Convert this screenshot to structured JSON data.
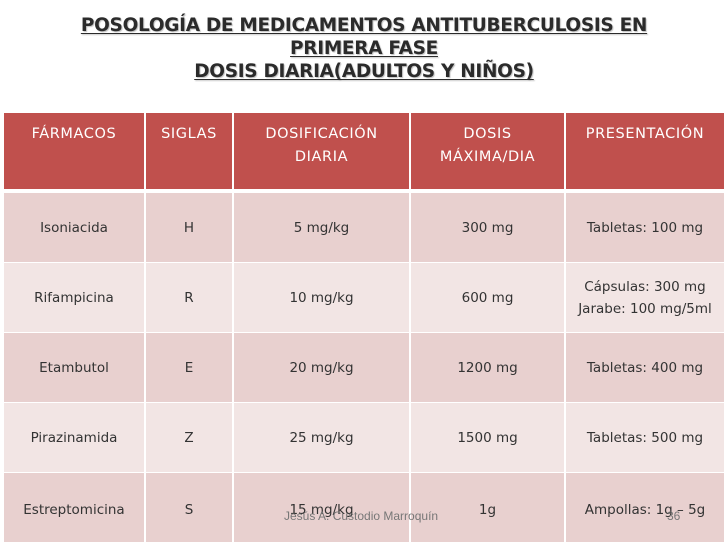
{
  "title": {
    "line1": "POSOLOGÍA DE MEDICAMENTOS ANTITUBERCULOSIS EN",
    "line2": "PRIMERA FASE",
    "line3": "DOSIS DIARIA(ADULTOS Y NIÑOS)"
  },
  "table": {
    "headers": {
      "farmacos": "FÁRMACOS",
      "siglas": "SIGLAS",
      "dosificacion_1": "DOSIFICACIÓN",
      "dosificacion_2": "DIARIA",
      "dosis_max_1": "DOSIS",
      "dosis_max_2": "MÁXIMA/DIA",
      "presentacion": "PRESENTACIÓN"
    },
    "rows": [
      {
        "farmaco": "Isoniacida",
        "sigla": "H",
        "dosificacion": "5 mg/kg",
        "dosis_max": "300 mg",
        "presentacion": "Tabletas: 100 mg",
        "presentacion2": ""
      },
      {
        "farmaco": "Rifampicina",
        "sigla": "R",
        "dosificacion": "10 mg/kg",
        "dosis_max": "600 mg",
        "presentacion": "Cápsulas: 300 mg",
        "presentacion2": "Jarabe: 100 mg/5ml"
      },
      {
        "farmaco": "Etambutol",
        "sigla": "E",
        "dosificacion": "20 mg/kg",
        "dosis_max": "1200 mg",
        "presentacion": "Tabletas: 400 mg",
        "presentacion2": ""
      },
      {
        "farmaco": "Pirazinamida",
        "sigla": "Z",
        "dosificacion": "25 mg/kg",
        "dosis_max": "1500 mg",
        "presentacion": "Tabletas: 500 mg",
        "presentacion2": ""
      },
      {
        "farmaco": "Estreptomicina",
        "sigla": "S",
        "dosificacion": "15 mg/kg",
        "dosis_max": "1g",
        "presentacion": "Ampollas: 1g – 5g",
        "presentacion2": ""
      }
    ]
  },
  "footer": {
    "author": "Jesús A. Custodio Marroquín",
    "page_number": "36"
  },
  "colors": {
    "header_bg": "#c0504d",
    "row_odd": "#e8d0cf",
    "row_even": "#f2e5e4"
  }
}
